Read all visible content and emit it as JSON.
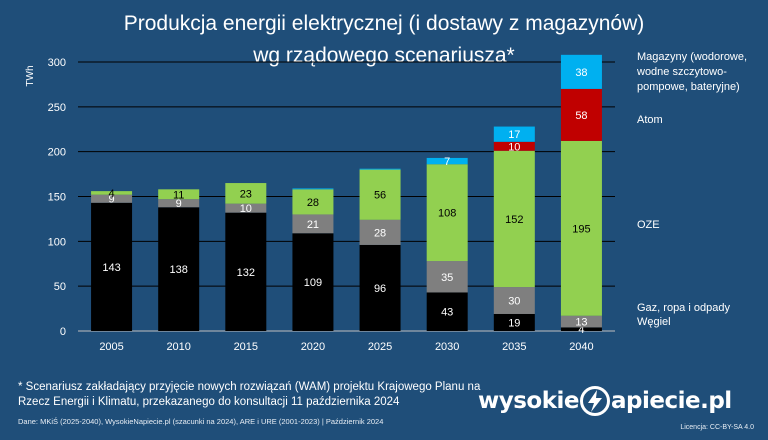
{
  "title_line1": "Produkcja energii elektrycznej (i dostawy z magazynów)",
  "title_line2": "wg rządowego scenariusza*",
  "footnote": "* Scenariusz zakładający przyjęcie nowych rozwiązań (WAM) projektu Krajowego Planu na Rzecz Energii i Klimatu, przekazanego do konsultacji 11 października 2024",
  "source": "Dane: MKiŚ (2025-2040), WysokieNapiecie.pl (szacunki na 2024), ARE i URE (2001-2023)  |  Październik 2024",
  "license": "Licencja: CC-BY-SA 4.0",
  "logo": {
    "part1": "wysokie",
    "part2": "apiecie.pl"
  },
  "colors": {
    "background": "#1f4e79",
    "coal": "#000000",
    "gas": "#7f7f7f",
    "res": "#92d050",
    "nuclear": "#c00000",
    "storage": "#00b0f0"
  },
  "chart_data": {
    "type": "bar",
    "stacked": true,
    "ylabel": "TWh",
    "ylim": [
      0,
      300
    ],
    "yticks": [
      0,
      50,
      100,
      150,
      200,
      250,
      300
    ],
    "grid": true,
    "legend_position": "right",
    "categories": [
      "2005",
      "2010",
      "2015",
      "2020",
      "2025",
      "2030",
      "2035",
      "2040"
    ],
    "series": [
      {
        "name": "Węgiel",
        "color": "#000000",
        "values": [
          143,
          138,
          132,
          109,
          96,
          43,
          19,
          4
        ],
        "labels": [
          "143",
          "138",
          "132",
          "109",
          "96",
          "43",
          "19",
          "4"
        ]
      },
      {
        "name": "Gaz, ropa i odpady",
        "color": "#7f7f7f",
        "values": [
          9,
          9,
          10,
          21,
          28,
          35,
          30,
          13
        ],
        "labels": [
          "9",
          "9",
          "10",
          "21",
          "28",
          "35",
          "30",
          "13"
        ]
      },
      {
        "name": "OZE",
        "color": "#92d050",
        "values": [
          4,
          11,
          23,
          28,
          56,
          108,
          152,
          195
        ],
        "labels": [
          "4",
          "11",
          "23",
          "28",
          "56",
          "108",
          "152",
          "195"
        ]
      },
      {
        "name": "Atom",
        "color": "#c00000",
        "values": [
          0,
          0,
          0,
          0,
          0,
          0,
          10,
          58
        ],
        "labels": [
          "",
          "",
          "",
          "",
          "",
          "",
          "10",
          "58"
        ]
      },
      {
        "name": "Magazyny (wodorowe, wodne szczytowo-pompowe, bateryjne)",
        "color": "#00b0f0",
        "values": [
          0,
          0,
          0,
          1,
          1,
          7,
          17,
          38
        ],
        "labels": [
          "",
          "",
          "",
          "",
          "",
          "7",
          "17",
          "38"
        ],
        "legend_lines": [
          "Magazyny (wodorowe,",
          "wodne szczytowo-",
          "pompowe, bateryjne)"
        ]
      }
    ]
  }
}
